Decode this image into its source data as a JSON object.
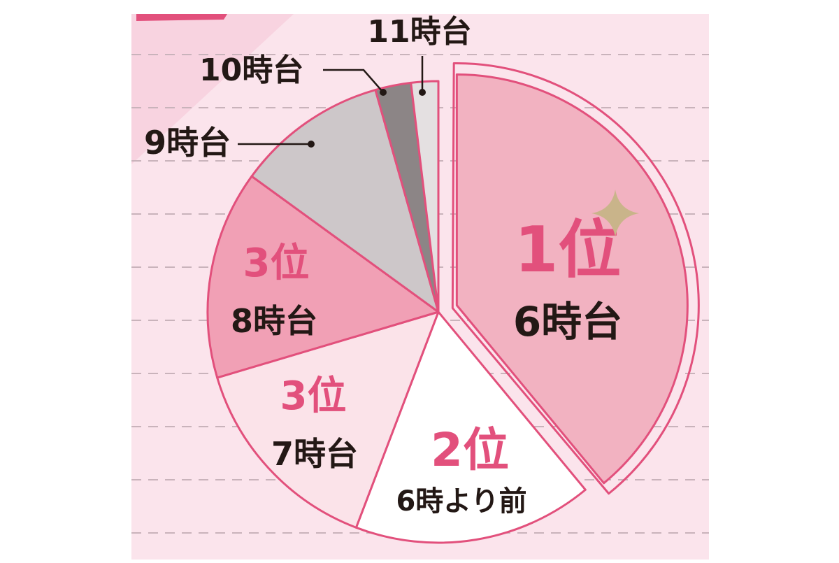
{
  "colors": {
    "panel_bg": "#fbe4ec",
    "panel_stripe": "#f8d3e0",
    "dash": "#c9b3bb",
    "accent": "#e2507c",
    "text_dark": "#231815",
    "leader": "#231815",
    "sparkle": "#c9b48a"
  },
  "chart_data": {
    "type": "pie",
    "start": "12 o'clock",
    "direction": "clockwise",
    "slices": [
      {
        "id": "s6",
        "label": "6時台",
        "rank": "1位",
        "value": 39.0,
        "color": "#f2b2c1",
        "exploded": true
      },
      {
        "id": "before6",
        "label": "6時より前",
        "rank": "2位",
        "value": 16.8,
        "color": "#ffffff"
      },
      {
        "id": "s7",
        "label": "7時台",
        "rank": "3位",
        "value": 14.6,
        "color": "#fbe3e9"
      },
      {
        "id": "s8",
        "label": "8時台",
        "rank": "3位",
        "value": 14.6,
        "color": "#f1a0b5"
      },
      {
        "id": "s9",
        "label": "9時台",
        "value": 10.6,
        "color": "#cdc7c9"
      },
      {
        "id": "s10",
        "label": "10時台",
        "value": 2.5,
        "color": "#8c8586"
      },
      {
        "id": "s11",
        "label": "11時台",
        "value": 1.9,
        "color": "#e4e0e1"
      }
    ]
  }
}
